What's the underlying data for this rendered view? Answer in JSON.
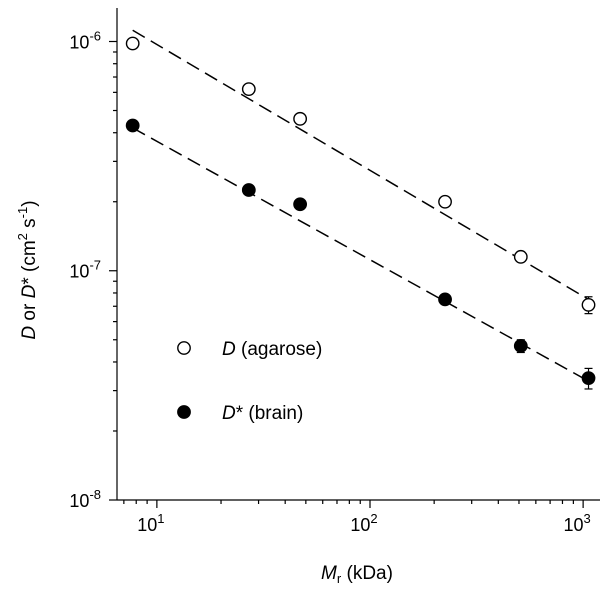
{
  "chart_data": {
    "type": "scatter",
    "x_scale": "log",
    "y_scale": "log",
    "xlim": [
      6.5,
      1200
    ],
    "ylim": [
      1e-08,
      1.4e-06
    ],
    "grid": false,
    "legend_position": "center-left",
    "x_ticks": [
      {
        "value": 10,
        "base": "10",
        "exp": "1"
      },
      {
        "value": 100,
        "base": "10",
        "exp": "2"
      },
      {
        "value": 1000,
        "base": "10",
        "exp": "3"
      }
    ],
    "y_ticks": [
      {
        "value": 1e-08,
        "base": "10",
        "exp": "-8"
      },
      {
        "value": 1e-07,
        "base": "10",
        "exp": "-7"
      },
      {
        "value": 1e-06,
        "base": "10",
        "exp": "-6"
      }
    ],
    "xlabel": {
      "italic": "M",
      "subscript": "r",
      "rest": " (kDa)"
    },
    "ylabel": {
      "p1": "D",
      "p2": " or ",
      "p3": "D",
      "p4": "* (cm",
      "p5": "2",
      "p6": " s",
      "p7": "-1",
      "p8": ")"
    },
    "series": [
      {
        "key": "agarose",
        "legend_italic": "D",
        "legend_rest": " (agarose)",
        "marker": "open-circle",
        "x": [
          7.7,
          27,
          47,
          225,
          510,
          1060
        ],
        "y": [
          9.8e-07,
          6.2e-07,
          4.6e-07,
          2e-07,
          1.15e-07,
          7.1e-08
        ],
        "err": [
          0,
          0,
          0,
          0,
          0,
          6e-09
        ],
        "fit": {
          "x": [
            7.7,
            1060
          ],
          "y": [
            1.12e-06,
            7.5e-08
          ]
        }
      },
      {
        "key": "brain",
        "legend_italic": "D",
        "legend_rest": "* (brain)",
        "marker": "filled-circle",
        "x": [
          7.7,
          27,
          47,
          225,
          510,
          1060
        ],
        "y": [
          4.3e-07,
          2.25e-07,
          1.95e-07,
          7.5e-08,
          4.7e-08,
          3.4e-08
        ],
        "err": [
          0,
          0,
          0,
          0,
          3e-09,
          3.5e-09
        ],
        "fit": {
          "x": [
            7.7,
            1060
          ],
          "y": [
            4.2e-07,
            3.3e-08
          ]
        }
      }
    ]
  }
}
